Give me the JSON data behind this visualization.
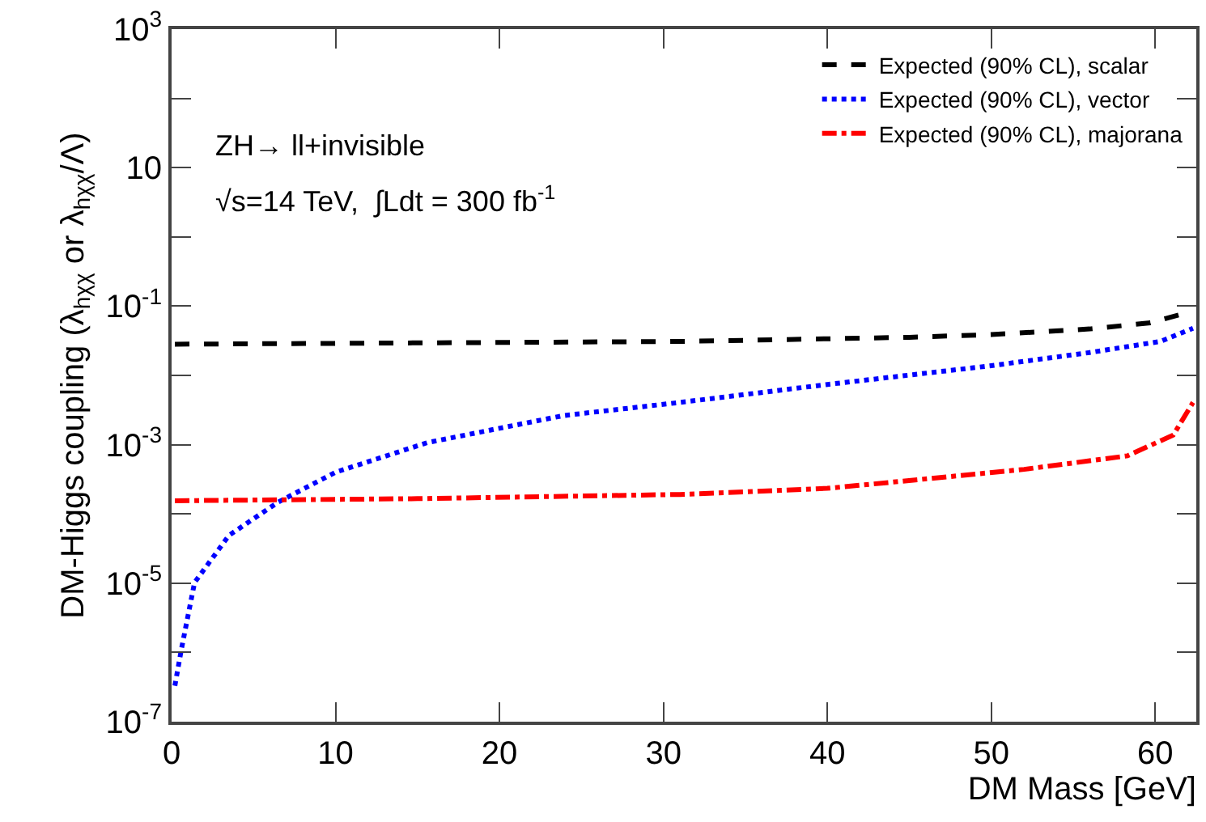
{
  "chart_data": {
    "type": "line",
    "xlabel": "DM Mass [GeV]",
    "ylabel": "DM-Higgs coupling (λ$_{hχχ}$ or λ$_{hχχ}$/Λ)",
    "log": "y",
    "grid": false,
    "legend": "top right",
    "marker": "none",
    "xlim": [
      0,
      62.5
    ],
    "xticks": [
      0,
      10,
      20,
      30,
      40,
      50,
      60
    ],
    "ylim": [
      1e-07,
      1000
    ],
    "yticks": [
      {
        "value": 1e-07,
        "label": "10$^{-7}$"
      },
      {
        "value": 1e-06,
        "label": null
      },
      {
        "value": 1e-05,
        "label": "10$^{-5}$"
      },
      {
        "value": 0.0001,
        "label": null
      },
      {
        "value": 0.001,
        "label": "10$^{-3}$"
      },
      {
        "value": 0.01,
        "label": null
      },
      {
        "value": 0.1,
        "label": "10$^{-1}$"
      },
      {
        "value": 1,
        "label": null
      },
      {
        "value": 10,
        "label": "10"
      },
      {
        "value": 100,
        "label": null
      },
      {
        "value": 1000,
        "label": "10$^{3}$"
      }
    ],
    "series": [
      {
        "name": "Expected (90% CL), scalar",
        "color": "#000000",
        "line_style": "dashed",
        "x": [
          0.2,
          31,
          45,
          50,
          56,
          59.7,
          62
        ],
        "values": [
          0.0282,
          0.0309,
          0.0355,
          0.0389,
          0.0468,
          0.0575,
          0.0813
        ]
      },
      {
        "name": "Expected (90% CL), vector",
        "color": "#0000ff",
        "line_style": "dotted",
        "x": [
          0.2,
          0.6,
          1.4,
          3.5,
          6.5,
          10,
          15.6,
          23.9,
          31,
          40,
          50,
          56,
          60.3,
          62.3
        ],
        "values": [
          3.3e-07,
          1.12e-06,
          1.02e-05,
          4.9e-05,
          0.000148,
          0.0004,
          0.00107,
          0.00263,
          0.00407,
          0.0074,
          0.0138,
          0.0214,
          0.0309,
          0.0479
        ]
      },
      {
        "name": "Expected (90% CL), majorana",
        "color": "#ff0000",
        "line_style": "dashdot",
        "x": [
          0.2,
          15,
          31,
          40,
          44,
          52,
          58.3,
          61.1,
          62.3
        ],
        "values": [
          0.000155,
          0.000166,
          0.000191,
          0.000234,
          0.000288,
          0.00044,
          0.00069,
          0.00138,
          0.00407
        ]
      }
    ],
    "annotations": [
      "ZH→ ll+invisible",
      "√s=14 TeV,  ∫Ldt = 300 fb$^{-1}$"
    ]
  }
}
